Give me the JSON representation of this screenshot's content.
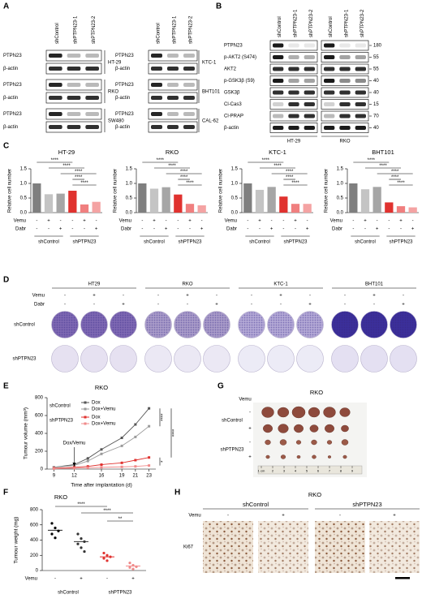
{
  "panel_labels": [
    "A",
    "B",
    "C",
    "D",
    "E",
    "F",
    "G",
    "H"
  ],
  "A": {
    "lanes": [
      "shControl",
      "shPTPN23-1",
      "shPTPN23-2"
    ],
    "blots": [
      {
        "cell_line": "HT-29",
        "rows": [
          "PTPN23",
          "β-actin"
        ]
      },
      {
        "cell_line": "RKO",
        "rows": [
          "PTPN23",
          "β-actin"
        ]
      },
      {
        "cell_line": "SW480",
        "rows": [
          "PTPN23",
          "β-actin"
        ]
      },
      {
        "cell_line": "KTC-1",
        "rows": [
          "PTPN23",
          "β-actin"
        ]
      },
      {
        "cell_line": "BHT101",
        "rows": [
          "PTPN23",
          "β-actin"
        ]
      },
      {
        "cell_line": "CAL-62",
        "rows": [
          "PTPN23",
          "β-actin"
        ]
      }
    ]
  },
  "B": {
    "lanes": [
      "shControl",
      "shPTPN23-1",
      "shPTPN23-2"
    ],
    "cell_lines": [
      "HT-29",
      "RKO"
    ],
    "rows": [
      {
        "name": "PTPN23",
        "mw": 180
      },
      {
        "name": "p-AKT2 (S474)",
        "mw": 55
      },
      {
        "name": "AKT2",
        "mw": 55
      },
      {
        "name": "p-GSK3β (S9)",
        "mw": 40
      },
      {
        "name": "GSK3β",
        "mw": 40
      },
      {
        "name": "Cl-Cas3",
        "mw": 15
      },
      {
        "name": "Cl-PRAP",
        "mw": 70
      },
      {
        "name": "β-actin",
        "mw": 40
      }
    ]
  },
  "C": {
    "ylabel": "Relative cell number",
    "ylim": [
      0,
      1.5
    ],
    "yticks": [
      {
        "value": 0,
        "label": "0.0"
      },
      {
        "value": 0.5,
        "label": "0.5"
      },
      {
        "value": 1,
        "label": "1.0"
      },
      {
        "value": 1.5,
        "label": "1.5"
      }
    ],
    "colors": [
      "#7f7f7f",
      "#c4c4c4",
      "#a6a6a6",
      "#e0322f",
      "#f07f7f",
      "#f4a3a3"
    ],
    "treatments": [
      {
        "name": "Vemu",
        "signs": [
          "-",
          "+",
          "-",
          "-",
          "+",
          "-"
        ]
      },
      {
        "name": "Dabr",
        "signs": [
          "-",
          "-",
          "+",
          "-",
          "-",
          "+"
        ]
      }
    ],
    "groups": [
      "shControl",
      "shPTPN23"
    ],
    "charts": [
      {
        "type": "bar",
        "title": "HT-29",
        "values": [
          1.0,
          0.63,
          0.65,
          0.75,
          0.28,
          0.37
        ],
        "significance": [
          "****",
          "****",
          "****",
          "****",
          "****"
        ]
      },
      {
        "type": "bar",
        "title": "RKO",
        "values": [
          1.0,
          0.82,
          0.87,
          0.62,
          0.3,
          0.25
        ],
        "significance": [
          "****",
          "****",
          "****",
          "****",
          "****"
        ]
      },
      {
        "type": "bar",
        "title": "KTC-1",
        "values": [
          1.0,
          0.78,
          0.88,
          0.55,
          0.3,
          0.3
        ],
        "significance": [
          "****",
          "****",
          "****",
          "****",
          "****"
        ]
      },
      {
        "type": "bar",
        "title": "BHT101",
        "values": [
          1.0,
          0.8,
          0.88,
          0.35,
          0.22,
          0.18
        ],
        "significance": [
          "****",
          "****",
          "****",
          "****",
          "****"
        ]
      }
    ]
  },
  "D": {
    "cell_lines": [
      "HT29",
      "RKO",
      "KTC-1",
      "BHT101"
    ],
    "treatments": [
      {
        "name": "Vemu",
        "signs": [
          "-",
          "+",
          "-"
        ]
      },
      {
        "name": "Dabr",
        "signs": [
          "-",
          "-",
          "+"
        ]
      }
    ],
    "rows": [
      "shControl",
      "shPTPN23"
    ]
  },
  "E": {
    "type": "line",
    "title": "RKO",
    "ylabel": "Tumour volume (mm³)",
    "xlabel": "Time after implantation (d)",
    "x": [
      9,
      12,
      14,
      16,
      19,
      21,
      23
    ],
    "xlim": [
      8,
      24
    ],
    "xticks": [
      9,
      12,
      16,
      19,
      21,
      23
    ],
    "ylim": [
      0,
      800
    ],
    "yticks": [
      0,
      200,
      400,
      600,
      800
    ],
    "annotation": "Dox/Vemu",
    "series_groups": [
      {
        "name": "shControl",
        "series": [
          {
            "name": "Dox",
            "color": "#555555",
            "values": [
              20,
              50,
              120,
              220,
              350,
              500,
              680
            ]
          },
          {
            "name": "Dox+Vemu",
            "color": "#9a9a9a",
            "values": [
              20,
              40,
              90,
              170,
              260,
              360,
              480
            ]
          }
        ]
      },
      {
        "name": "shPTPN23",
        "series": [
          {
            "name": "Dox",
            "color": "#e0322f",
            "values": [
              10,
              20,
              30,
              50,
              70,
              100,
              130
            ]
          },
          {
            "name": "Dox+Vemu",
            "color": "#f08a8a",
            "values": [
              5,
              10,
              15,
              20,
              25,
              30,
              40
            ]
          }
        ]
      }
    ],
    "significance": [
      "****",
      "****",
      "*"
    ]
  },
  "F": {
    "type": "dot",
    "title": "RKO",
    "ylabel": "Tumour weight (mg)",
    "ylim": [
      0,
      800
    ],
    "yticks": [
      0,
      200,
      400,
      600,
      800
    ],
    "treatment": {
      "name": "Vemu",
      "signs": [
        "-",
        "+",
        "-",
        "+"
      ]
    },
    "groups": [
      "shControl",
      "shPTPN23"
    ],
    "means": [
      530,
      380,
      180,
      60
    ],
    "colors": [
      "#000000",
      "#333333",
      "#e0322f",
      "#f08a8a"
    ],
    "points": [
      [
        620,
        560,
        520,
        480,
        430
      ],
      [
        480,
        420,
        380,
        350,
        300,
        250
      ],
      [
        230,
        200,
        180,
        160,
        130
      ],
      [
        100,
        70,
        50,
        40,
        20
      ]
    ],
    "significance": [
      "****",
      "****",
      "**"
    ]
  },
  "G": {
    "title": "RKO",
    "treatment": "Vemu",
    "groups": [
      {
        "name": "shControl",
        "signs": [
          "-",
          "+"
        ]
      },
      {
        "name": "shPTPN23",
        "signs": [
          "-",
          "+"
        ]
      }
    ],
    "ruler": [
      "1 cm",
      "2",
      "3",
      "4",
      "5",
      "6",
      "7",
      "8",
      "9"
    ]
  },
  "H": {
    "title": "RKO",
    "groups": [
      "shControl",
      "shPTPN23"
    ],
    "treatment": {
      "name": "Vemu",
      "signs": [
        "-",
        "+",
        "-",
        "+"
      ]
    },
    "stain": "Ki67"
  }
}
